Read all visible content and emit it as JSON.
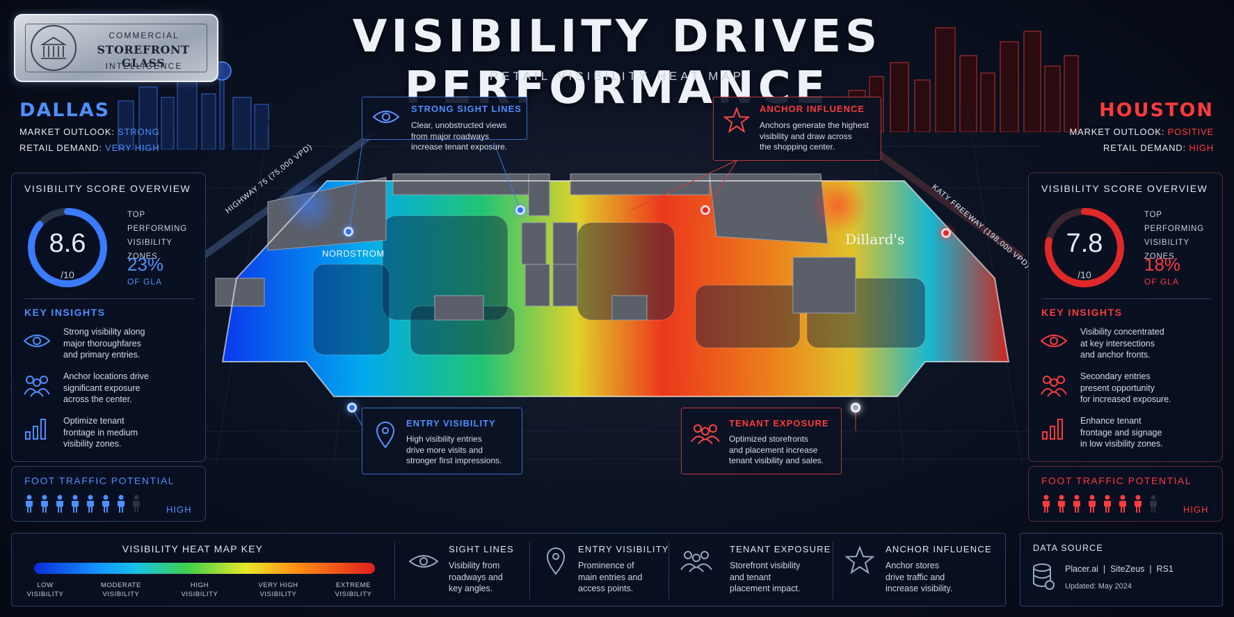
{
  "brand": {
    "line1": "COMMERCIAL",
    "line2": "STOREFRONT GLASS",
    "line3": "INTELLIGENCE"
  },
  "header": {
    "title": "VISIBILITY DRIVES PERFORMANCE",
    "subtitle": "RETAIL VISIBILITY HEAT MAP"
  },
  "dallas": {
    "city": "DALLAS",
    "outlook_label": "MARKET OUTLOOK:",
    "outlook_value": "STRONG",
    "demand_label": "RETAIL DEMAND:",
    "demand_value": "VERY HIGH",
    "accent": "#4f8fff",
    "score_title": "VISIBILITY SCORE OVERVIEW",
    "score": "8.6",
    "score_fraction": 0.86,
    "score_sub": "/10",
    "top_label": [
      "TOP PERFORMING",
      "VISIBILITY",
      "ZONES"
    ],
    "top_pct": "23%",
    "top_gla": "OF GLA",
    "insights_title": "KEY INSIGHTS",
    "insights": [
      {
        "icon": "eye-icon",
        "lines": [
          "Strong visibility along",
          "major thoroughfares",
          "and primary entries."
        ]
      },
      {
        "icon": "people-icon",
        "lines": [
          "Anchor locations drive",
          "significant exposure",
          "across the center."
        ]
      },
      {
        "icon": "bar-chart-icon",
        "lines": [
          "Optimize tenant",
          "frontage in medium",
          "visibility zones."
        ]
      }
    ],
    "foot_title": "FOOT TRAFFIC POTENTIAL",
    "foot_value": "HIGH",
    "foot_filled": 7,
    "foot_total": 8
  },
  "houston": {
    "city": "HOUSTON",
    "outlook_label": "MARKET OUTLOOK:",
    "outlook_value": "POSITIVE",
    "demand_label": "RETAIL DEMAND:",
    "demand_value": "HIGH",
    "accent": "#ff3b3b",
    "score_title": "VISIBILITY SCORE OVERVIEW",
    "score": "7.8",
    "score_fraction": 0.78,
    "score_sub": "/10",
    "top_label": [
      "TOP PERFORMING",
      "VISIBILITY",
      "ZONES"
    ],
    "top_pct": "18%",
    "top_gla": "OF GLA",
    "insights_title": "KEY INSIGHTS",
    "insights": [
      {
        "icon": "eye-icon",
        "lines": [
          "Visibility concentrated",
          "at key intersections",
          "and anchor fronts."
        ]
      },
      {
        "icon": "people-icon",
        "lines": [
          "Secondary entries",
          "present opportunity",
          "for increased exposure."
        ]
      },
      {
        "icon": "bar-chart-icon",
        "lines": [
          "Enhance tenant",
          "frontage and signage",
          "in low visibility zones."
        ]
      }
    ],
    "foot_title": "FOOT TRAFFIC POTENTIAL",
    "foot_value": "HIGH",
    "foot_filled": 7,
    "foot_total": 8
  },
  "map": {
    "left_store": "NORDSTROM",
    "right_store": "Dillard's",
    "left_road": "HIGHWAY 75 (75,000 VPD)",
    "right_road": "KATY FREEWAY (198,000 VPD)"
  },
  "callouts": {
    "sight": {
      "title": "STRONG SIGHT LINES",
      "lines": [
        "Clear, unobstructed views",
        "from major roadways",
        "increase tenant exposure."
      ]
    },
    "anchor": {
      "title": "ANCHOR INFLUENCE",
      "lines": [
        "Anchors generate the highest",
        "visibility and draw across",
        "the shopping center."
      ]
    },
    "entry": {
      "title": "ENTRY VISIBILITY",
      "lines": [
        "High visibility entries",
        "drive more visits and",
        "stronger first impressions."
      ]
    },
    "tenant": {
      "title": "TENANT EXPOSURE",
      "lines": [
        "Optimized storefronts",
        "and placement increase",
        "tenant visibility and sales."
      ]
    }
  },
  "key": {
    "title": "VISIBILITY HEAT MAP KEY",
    "levels": [
      [
        "LOW",
        "VISIBILITY"
      ],
      [
        "MODERATE",
        "VISIBILITY"
      ],
      [
        "HIGH",
        "VISIBILITY"
      ],
      [
        "VERY HIGH",
        "VISIBILITY"
      ],
      [
        "EXTREME",
        "VISIBILITY"
      ]
    ],
    "items": [
      {
        "icon": "eye-icon",
        "title": "SIGHT LINES",
        "lines": [
          "Visibility from",
          "roadways and",
          "key angles."
        ]
      },
      {
        "icon": "map-pin-icon",
        "title": "ENTRY VISIBILITY",
        "lines": [
          "Prominence of",
          "main entries and",
          "access points."
        ]
      },
      {
        "icon": "people-icon",
        "title": "TENANT EXPOSURE",
        "lines": [
          "Storefront visibility",
          "and tenant",
          "placement impact."
        ]
      },
      {
        "icon": "star-icon",
        "title": "ANCHOR INFLUENCE",
        "lines": [
          "Anchor stores",
          "drive traffic and",
          "increase visibility."
        ]
      }
    ],
    "source_title": "DATA SOURCE",
    "source_line": "Placer.ai  |  SiteZeus  |  RS1",
    "updated": "Updated: May 2024"
  }
}
